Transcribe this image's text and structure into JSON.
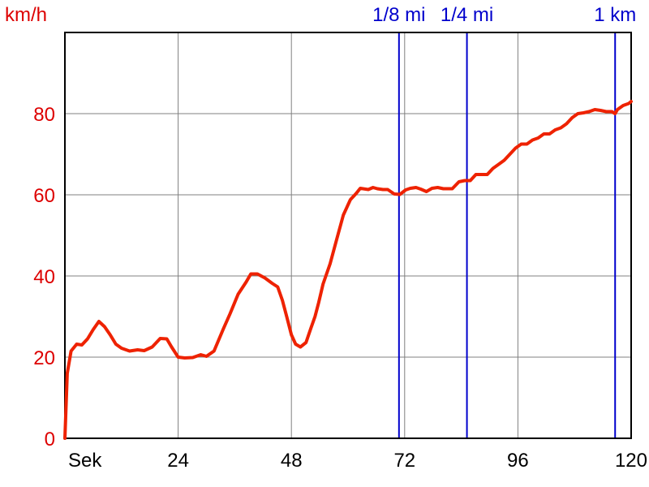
{
  "chart_data": {
    "type": "line",
    "ylabel": "km/h",
    "xlabel": "Sek",
    "xlim": [
      0,
      120
    ],
    "ylim": [
      0,
      100
    ],
    "grid": true,
    "x_ticks": [
      {
        "value": 0,
        "label": "Sek"
      },
      {
        "value": 24,
        "label": "24"
      },
      {
        "value": 48,
        "label": "48"
      },
      {
        "value": 72,
        "label": "72"
      },
      {
        "value": 96,
        "label": "96"
      },
      {
        "value": 120,
        "label": "120"
      }
    ],
    "y_ticks": [
      {
        "value": 0,
        "label": "0"
      },
      {
        "value": 20,
        "label": "20"
      },
      {
        "value": 40,
        "label": "40"
      },
      {
        "value": 60,
        "label": "60"
      },
      {
        "value": 80,
        "label": "80"
      }
    ],
    "markers": [
      {
        "label": "1/8 mi",
        "x": 70.8,
        "color": "#0000cc"
      },
      {
        "label": "1/4 mi",
        "x": 85.2,
        "color": "#0000cc"
      },
      {
        "label": "1 km",
        "x": 116.6,
        "color": "#0000cc"
      }
    ],
    "colors": {
      "axis_labels": "#dd0000",
      "line": "#ee2200",
      "markers": "#0000cc",
      "grid": "#808080"
    },
    "series": [
      {
        "x": [
          0,
          0.5,
          1.3,
          2.5,
          3.6,
          4.8,
          6.0,
          7.2,
          8.4,
          9.6,
          10.8,
          12.0,
          13.7,
          15.4,
          16.8,
          18.5,
          20.2,
          21.6,
          22.6,
          24.0,
          25.4,
          27.1,
          28.8,
          30.0,
          31.6,
          33.6,
          35.0,
          36.7,
          38.4,
          39.4,
          40.8,
          42.4,
          43.9,
          45.1,
          46.1,
          47.0,
          48.0,
          48.9,
          49.9,
          51.1,
          52.1,
          53.0,
          53.8,
          54.7,
          56.2,
          57.6,
          59.0,
          60.5,
          61.7,
          62.6,
          64.3,
          65.3,
          66.2,
          67.4,
          68.4,
          69.8,
          71.0,
          72.2,
          73.2,
          74.4,
          75.4,
          76.6,
          77.8,
          79.0,
          80.2,
          82.1,
          83.5,
          84.7,
          85.9,
          87.1,
          88.3,
          89.5,
          90.7,
          91.9,
          93.1,
          94.3,
          95.5,
          96.7,
          97.9,
          99.1,
          100.3,
          101.5,
          102.7,
          103.9,
          105.1,
          106.3,
          107.5,
          108.7,
          109.9,
          111.1,
          112.3,
          113.5,
          114.7,
          115.9,
          116.6,
          117.1,
          118.3,
          119.5,
          120.0
        ],
        "y": [
          0,
          16,
          21.5,
          23.2,
          23,
          24.5,
          26.8,
          28.8,
          27.5,
          25.5,
          23.2,
          22.2,
          21.5,
          21.8,
          21.6,
          22.5,
          24.6,
          24.5,
          22.5,
          20,
          19.8,
          19.9,
          20.6,
          20.2,
          21.5,
          27,
          30.7,
          35.5,
          38.5,
          40.5,
          40.5,
          39.5,
          38.2,
          37.3,
          34,
          30,
          25.5,
          23.2,
          22.5,
          23.6,
          27,
          30,
          33.5,
          38,
          43,
          49,
          55,
          58.8,
          60.3,
          61.6,
          61.3,
          61.8,
          61.5,
          61.3,
          61.3,
          60.2,
          60.1,
          61.2,
          61.6,
          61.8,
          61.4,
          60.8,
          61.6,
          61.8,
          61.5,
          61.5,
          63.2,
          63.5,
          63.5,
          65,
          65,
          65,
          66.5,
          67.5,
          68.5,
          70,
          71.5,
          72.5,
          72.5,
          73.5,
          74,
          75,
          75,
          76,
          76.5,
          77.5,
          79,
          80,
          80.2,
          80.5,
          81,
          80.8,
          80.5,
          80.5,
          80,
          81,
          82,
          82.5,
          83
        ]
      }
    ]
  }
}
